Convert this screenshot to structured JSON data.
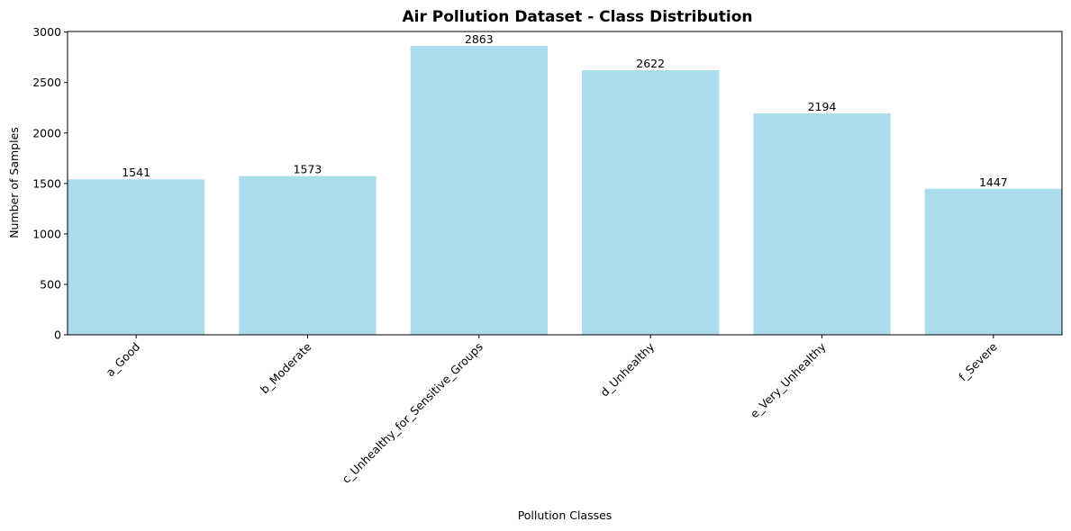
{
  "chart_data": {
    "type": "bar",
    "title": "Air Pollution Dataset - Class Distribution",
    "xlabel": "Pollution Classes",
    "ylabel": "Number of Samples",
    "categories": [
      "a_Good",
      "b_Moderate",
      "c_Unhealthy_for_Sensitive_Groups",
      "d_Unhealthy",
      "e_Very_Unhealthy",
      "f_Severe"
    ],
    "values": [
      1541,
      1573,
      2863,
      2622,
      2194,
      1447
    ],
    "ylim": [
      0,
      3006
    ],
    "yticks": [
      0,
      500,
      1000,
      1500,
      2000,
      2500,
      3000
    ],
    "bar_color": "#aadcee",
    "grid": false,
    "legend": "none"
  }
}
